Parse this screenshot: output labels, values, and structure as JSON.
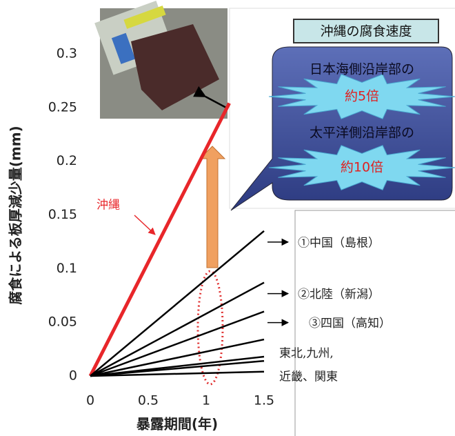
{
  "chart_data": {
    "type": "line",
    "xlabel": "暴露期間(年)",
    "ylabel": "腐食による板厚減少量(mm)",
    "xlim": [
      0,
      1.5
    ],
    "xticks": [
      0,
      0.5,
      1,
      1.5
    ],
    "ylim": [
      0,
      0.3
    ],
    "yticks": [
      0,
      0.05,
      0.1,
      0.15,
      0.2,
      0.25,
      0.3
    ],
    "series": [
      {
        "name": "沖縄",
        "color": "#e8262a",
        "x": [
          0,
          1.2
        ],
        "values": [
          0,
          0.254
        ]
      },
      {
        "name": "①中国（島根）",
        "color": "#000000",
        "x": [
          0,
          1.5
        ],
        "values": [
          0,
          0.135
        ]
      },
      {
        "name": "②北陸（新潟）",
        "color": "#000000",
        "x": [
          0,
          1.5
        ],
        "values": [
          0,
          0.087
        ]
      },
      {
        "name": "③四国（高知）",
        "color": "#000000",
        "x": [
          0,
          1.5
        ],
        "values": [
          0,
          0.06
        ]
      },
      {
        "color": "#000000",
        "x": [
          0,
          1.5
        ],
        "values": [
          0,
          0.034
        ]
      },
      {
        "color": "#000000",
        "x": [
          0,
          1.5
        ],
        "values": [
          0,
          0.018
        ]
      },
      {
        "color": "#000000",
        "x": [
          0,
          1.5
        ],
        "values": [
          0,
          0.014
        ]
      },
      {
        "color": "#000000",
        "x": [
          0,
          1.5
        ],
        "values": [
          0,
          0.004
        ]
      }
    ],
    "annotations": [
      "東北,九州,",
      "近畿、関東"
    ],
    "callout": {
      "title": "沖縄の腐食速度",
      "items": [
        "日本海側沿岸部の",
        "約5倍",
        "太平洋側沿岸部の",
        "約10倍"
      ]
    }
  }
}
